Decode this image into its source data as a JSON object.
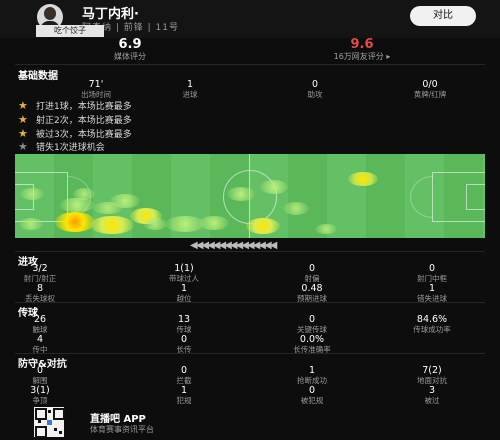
{
  "header": {
    "player_name": "马丁内利·",
    "subtitle": "阿森纳 | 前锋 | 11号",
    "compare_button": "对比",
    "tag": "吃个饺子"
  },
  "ratings": {
    "media": {
      "value": "6.9",
      "label": "媒体评分"
    },
    "fan": {
      "value": "9.6",
      "label": "16万网友评分 ▸"
    }
  },
  "basic": {
    "title": "基础数据",
    "stats": [
      {
        "value": "71'",
        "label": "出场时间"
      },
      {
        "value": "1",
        "label": "进球"
      },
      {
        "value": "0",
        "label": "助攻"
      },
      {
        "value": "0/0",
        "label": "黄牌/红牌"
      }
    ]
  },
  "achievements": [
    {
      "icon": "star-icon",
      "color": "#e0b33c",
      "text": "打进1球，本场比赛最多"
    },
    {
      "icon": "star-icon",
      "color": "#e0b33c",
      "text": "射正2次，本场比赛最多"
    },
    {
      "icon": "star-icon",
      "color": "#e0b33c",
      "text": "被过3次，本场比赛最多"
    },
    {
      "icon": "star-icon",
      "color": "#8a8a8a",
      "text": "错失1次进球机会"
    }
  ],
  "attack": {
    "title": "进攻",
    "row1": [
      {
        "value": "3/2",
        "label": "射门/射正"
      },
      {
        "value": "1(1)",
        "label": "带球过人"
      },
      {
        "value": "0",
        "label": "射偏"
      },
      {
        "value": "0",
        "label": "射门中框"
      }
    ],
    "row2": [
      {
        "value": "8",
        "label": "丢失球权"
      },
      {
        "value": "1",
        "label": "越位"
      },
      {
        "value": "0.48",
        "label": "预期进球"
      },
      {
        "value": "1",
        "label": "错失进球"
      }
    ]
  },
  "passing": {
    "title": "传球",
    "row1": [
      {
        "value": "26",
        "label": "触球"
      },
      {
        "value": "13",
        "label": "传球"
      },
      {
        "value": "0",
        "label": "关键传球"
      },
      {
        "value": "84.6%",
        "label": "传球成功率"
      }
    ],
    "row2": [
      {
        "value": "4",
        "label": "传中"
      },
      {
        "value": "0",
        "label": "长传"
      },
      {
        "value": "0.0%",
        "label": "长传准确率"
      }
    ]
  },
  "defense": {
    "title": "防守&对抗",
    "row1": [
      {
        "value": "0",
        "label": "解围"
      },
      {
        "value": "0",
        "label": "拦截"
      },
      {
        "value": "1",
        "label": "抢断成功"
      },
      {
        "value": "7(2)",
        "label": "地面对抗"
      }
    ],
    "row2": [
      {
        "value": "3(1)",
        "label": "争顶"
      },
      {
        "value": "1",
        "label": "犯规"
      },
      {
        "value": "0",
        "label": "被犯规"
      },
      {
        "value": "3",
        "label": "被过"
      }
    ]
  },
  "footer": {
    "app_name": "直播吧 APP",
    "app_sub": "体育赛事资讯平台"
  },
  "colors": {
    "accent": "#e14b4b",
    "pitch": "#64c064",
    "star": "#e0b33c"
  }
}
